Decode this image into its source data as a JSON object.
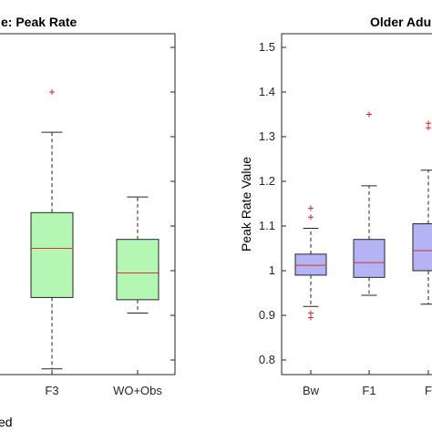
{
  "chart_data": [
    {
      "type": "box",
      "title": "e: Peak Rate",
      "categories": [
        "F3",
        "WO+Obs"
      ],
      "xlabel_partial": "ed",
      "box_color": "#b4f7b4",
      "median_color": "#e0312a",
      "outlier_color": "#d62728",
      "boxes": [
        {
          "category": "F3",
          "whisker_low": 0.78,
          "q1": 0.94,
          "median": 1.05,
          "q3": 1.13,
          "whisker_high": 1.31,
          "outliers": [
            1.4
          ]
        },
        {
          "category": "WO+Obs",
          "whisker_low": 0.905,
          "q1": 0.935,
          "median": 0.995,
          "q3": 1.07,
          "whisker_high": 1.165,
          "outliers": []
        }
      ]
    },
    {
      "type": "box",
      "title": "Older Adu",
      "ylabel": "Peak Rate Value",
      "categories": [
        "Bw",
        "F1",
        "F"
      ],
      "ylim": [
        0.75,
        1.53
      ],
      "yticks": [
        "0.8",
        "0.9",
        "1",
        "1.1",
        "1.2",
        "1.3",
        "1.4",
        "1.5"
      ],
      "box_color": "#b3b3f5",
      "median_color": "#e0312a",
      "outlier_color": "#d62728",
      "boxes": [
        {
          "category": "Bw",
          "whisker_low": 0.92,
          "q1": 0.99,
          "median": 1.012,
          "q3": 1.037,
          "whisker_high": 1.095,
          "outliers": [
            1.14,
            1.12,
            0.905,
            0.895
          ]
        },
        {
          "category": "F1",
          "whisker_low": 0.945,
          "q1": 0.985,
          "median": 1.018,
          "q3": 1.07,
          "whisker_high": 1.19,
          "outliers": [
            1.35
          ]
        },
        {
          "category": "F",
          "whisker_low": 0.925,
          "q1": 1.0,
          "median": 1.045,
          "q3": 1.105,
          "whisker_high": 1.225,
          "outliers": [
            1.33,
            1.32
          ]
        }
      ]
    }
  ]
}
